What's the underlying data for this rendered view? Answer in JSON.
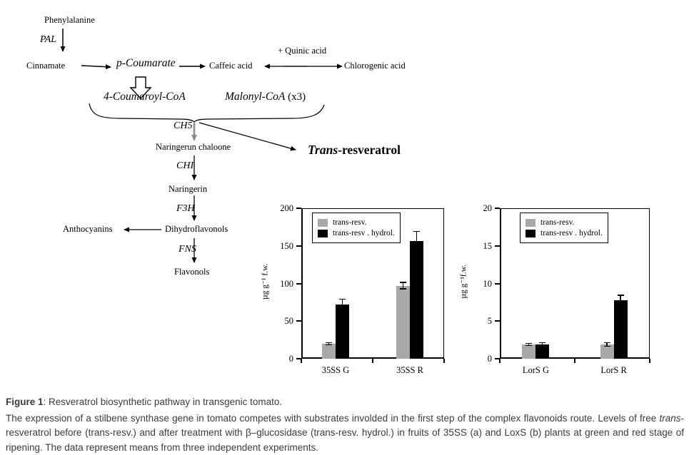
{
  "colors": {
    "bar_gray": "#a8a8a8",
    "bar_black": "#000000",
    "arrow_gray": "#8c8c8c",
    "caption_text": "#3c3c3c"
  },
  "pathway": {
    "labels": {
      "phenylalanine": "Phenylalanine",
      "pal": "PAL",
      "cinnamate": "Cinnamate",
      "p_coumarate": "p-Coumarate",
      "caffeic_acid": "Caffeic acid",
      "quinic_acid": "+ Quinic acid",
      "chlorogenic_acid": "Chlorogenic acid",
      "coumaroyl_coa": "4-Coumaroyl-CoA",
      "malonyl_coa": "Malonyl-CoA",
      "malonyl_mult": " (x3)",
      "ch5": "CH5",
      "naringenin_chalcone": "Naringerun chaloone",
      "chi": "CHI",
      "naringenin": "Naringerin",
      "f3h": "F3H",
      "anthocyanins": "Anthocyanins",
      "dihydroflavonols": "Dihydroflavonols",
      "fns": "FNS",
      "flavonols": "Flavonols",
      "trans_italic": "Trans",
      "trans_rest": "-resveratrol"
    }
  },
  "chart_data": [
    {
      "type": "bar",
      "panel": "a",
      "categories": [
        "35SS G",
        "35SS R"
      ],
      "series": [
        {
          "name": "trans-resv.",
          "color": "#a8a8a8",
          "values": [
            20,
            97
          ],
          "errors": [
            2,
            5
          ]
        },
        {
          "name": "trans-resv . hydrol.",
          "color": "#000000",
          "values": [
            72,
            156
          ],
          "errors": [
            8,
            14
          ]
        }
      ],
      "title": "",
      "xlabel": "",
      "ylabel": "µg g⁻¹ f.w.",
      "ylim": [
        0,
        200
      ],
      "yticks": [
        0,
        50,
        100,
        150,
        200
      ],
      "grid": false,
      "legend_position": "top-left"
    },
    {
      "type": "bar",
      "panel": "b",
      "categories": [
        "LorS G",
        "LorS R"
      ],
      "series": [
        {
          "name": "trans-resv.",
          "color": "#a8a8a8",
          "values": [
            1.9,
            1.9
          ],
          "errors": [
            0.2,
            0.3
          ]
        },
        {
          "name": "trans-resv . hydrol.",
          "color": "#000000",
          "values": [
            1.9,
            7.8
          ],
          "errors": [
            0.3,
            0.7
          ]
        }
      ],
      "title": "",
      "xlabel": "",
      "ylabel": "µg g⁻¹f.w.",
      "ylim": [
        0,
        20
      ],
      "yticks": [
        0,
        5,
        10,
        15,
        20
      ],
      "grid": false,
      "legend_position": "top-left"
    }
  ],
  "caption": {
    "title_bold": "Figure 1",
    "title_rest": ": Resveratrol biosynthetic pathway in transgenic tomato.",
    "body_1": "The expression of a stilbene synthase gene in tomato competes with substrates involded in the first step of the complex flavonoids route. Levels of free ",
    "body_italic": "trans",
    "body_2": "-resveratrol before (trans-resv.) and after treatment with β–glucosidase (trans-resv. hydrol.) in fruits of 35SS (a) and LoxS (b) plants at green and red stage of ripening. The data represent means from three independent experiments."
  }
}
